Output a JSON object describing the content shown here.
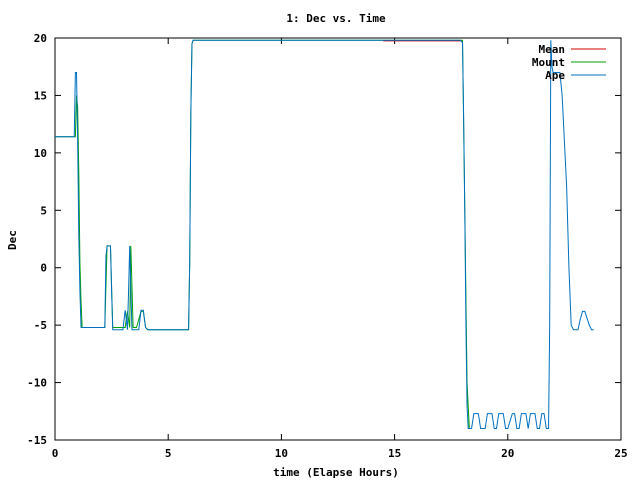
{
  "chart_data": {
    "type": "line",
    "title": "1: Dec vs. Time",
    "xlabel": "time (Elapse Hours)",
    "ylabel": "Dec",
    "xlim": [
      0,
      25
    ],
    "ylim": [
      -15,
      20
    ],
    "xticks": [
      0,
      5,
      10,
      15,
      20,
      25
    ],
    "yticks": [
      -15,
      -10,
      -5,
      0,
      5,
      10,
      15,
      20
    ],
    "grid": false,
    "legend": "top-right",
    "series": [
      {
        "name": "Mean",
        "color": "#d00000",
        "x": [
          14.5,
          17.95
        ],
        "y": [
          19.75,
          19.75
        ]
      },
      {
        "name": "Mount",
        "color": "#00a000",
        "x": [
          0.0,
          0.9,
          0.95,
          1.0,
          1.05,
          1.1,
          1.15,
          1.2,
          2.2,
          2.3,
          2.45,
          2.55,
          2.65,
          3.1,
          3.2,
          3.3,
          3.35,
          3.45,
          3.5,
          3.6,
          3.8,
          3.9,
          4.0,
          4.1,
          5.9,
          5.95,
          6.0,
          6.05,
          6.1,
          14.5,
          18.0,
          18.1,
          18.2,
          18.3
        ],
        "y": [
          11.4,
          11.4,
          15.0,
          14.0,
          8.4,
          0.5,
          -3.0,
          -5.2,
          -5.2,
          1.9,
          1.9,
          -5.2,
          -5.2,
          -5.2,
          -3.8,
          -5.2,
          1.9,
          -5.2,
          -5.2,
          -5.2,
          -3.8,
          -3.8,
          -5.2,
          -5.4,
          -5.4,
          0.5,
          13.5,
          19.5,
          19.8,
          19.8,
          19.8,
          5.0,
          -10.0,
          -14.0
        ]
      },
      {
        "name": "Ape",
        "color": "#0070c0",
        "x": [
          0.0,
          0.8,
          0.85,
          0.9,
          0.95,
          1.0,
          1.05,
          1.1,
          1.15,
          1.2,
          1.3,
          2.2,
          2.25,
          2.3,
          2.45,
          2.5,
          2.55,
          2.65,
          3.0,
          3.1,
          3.2,
          3.25,
          3.3,
          3.35,
          3.4,
          3.45,
          3.5,
          3.6,
          3.7,
          3.8,
          3.9,
          4.0,
          4.1,
          4.6,
          4.7,
          5.9,
          5.95,
          6.0,
          6.05,
          6.1,
          17.9,
          18.0,
          18.05,
          18.1,
          18.15,
          18.2,
          18.25,
          18.4,
          18.5,
          18.6,
          18.7,
          18.8,
          19.0,
          19.1,
          19.2,
          19.3,
          19.4,
          19.5,
          19.6,
          19.8,
          19.9,
          20.0,
          20.2,
          20.3,
          20.4,
          20.5,
          20.6,
          20.8,
          20.9,
          21.0,
          21.2,
          21.3,
          21.4,
          21.5,
          21.6,
          21.7,
          21.8,
          21.85,
          21.9,
          21.95,
          22.0,
          22.1,
          22.2,
          22.3,
          22.4,
          22.5,
          22.6,
          22.7,
          22.8,
          22.9,
          23.0,
          23.1,
          23.2,
          23.3,
          23.4,
          23.6,
          23.7,
          23.8
        ],
        "y": [
          11.4,
          11.4,
          11.4,
          17.0,
          17.0,
          11.0,
          3.0,
          -2.0,
          -5.2,
          -5.2,
          -5.2,
          -5.2,
          1.0,
          1.9,
          1.9,
          -2.0,
          -5.4,
          -5.4,
          -5.4,
          -3.7,
          -5.4,
          -2.0,
          1.9,
          -2.0,
          -5.4,
          -5.4,
          -5.4,
          -5.4,
          -5.4,
          -3.7,
          -3.7,
          -5.2,
          -5.4,
          -5.4,
          -5.4,
          -5.4,
          0.5,
          13.5,
          19.5,
          19.8,
          19.8,
          19.6,
          13.0,
          5.0,
          -5.0,
          -12.0,
          -14.0,
          -14.0,
          -12.7,
          -12.7,
          -12.7,
          -14.0,
          -14.0,
          -12.7,
          -12.7,
          -12.7,
          -14.0,
          -14.0,
          -12.7,
          -12.7,
          -14.0,
          -14.0,
          -12.7,
          -12.7,
          -14.0,
          -14.0,
          -12.7,
          -12.7,
          -14.0,
          -12.7,
          -12.7,
          -14.0,
          -14.0,
          -12.7,
          -12.7,
          -14.0,
          -14.0,
          -5.0,
          19.8,
          17.5,
          17.0,
          17.0,
          17.0,
          17.0,
          15.0,
          11.0,
          7.0,
          0.0,
          -5.0,
          -5.4,
          -5.4,
          -5.4,
          -4.5,
          -3.8,
          -3.8,
          -5.0,
          -5.4,
          -5.4
        ]
      }
    ]
  }
}
